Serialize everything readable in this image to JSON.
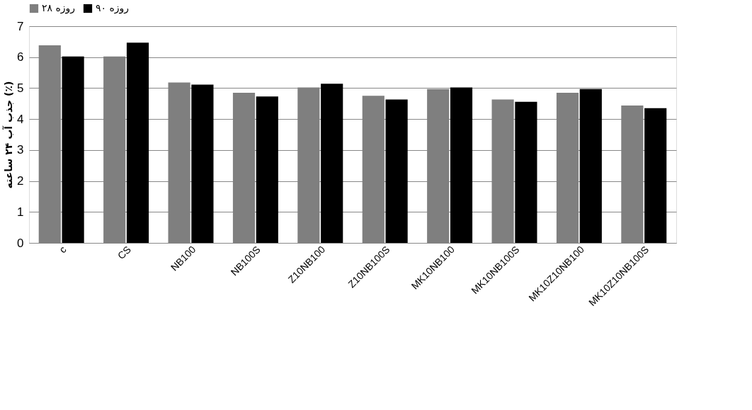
{
  "chart_data": {
    "type": "bar",
    "ylabel": "جذب آب ۲۴ ساعته (٪)",
    "categories": [
      "c",
      "CS",
      "NB100",
      "NB100S",
      "Z10NB100",
      "Z10NB100S",
      "MK10NB100",
      "MK10NB100S",
      "MK10Z10NB100",
      "MK10Z10NB100S"
    ],
    "series": [
      {
        "name": "۲۸ روزه",
        "color": "#7f7f7f",
        "values": [
          6.38,
          6.02,
          5.18,
          4.85,
          5.02,
          4.75,
          4.97,
          4.63,
          4.85,
          4.44
        ]
      },
      {
        "name": "۹۰ روزه",
        "color": "#000000",
        "values": [
          6.02,
          6.47,
          5.11,
          4.73,
          5.14,
          4.63,
          5.02,
          4.56,
          4.97,
          4.35
        ]
      }
    ],
    "ylim": [
      0,
      7
    ],
    "yticks": [
      0,
      1,
      2,
      3,
      4,
      5,
      6,
      7
    ],
    "grid": "y",
    "legend": "top"
  }
}
